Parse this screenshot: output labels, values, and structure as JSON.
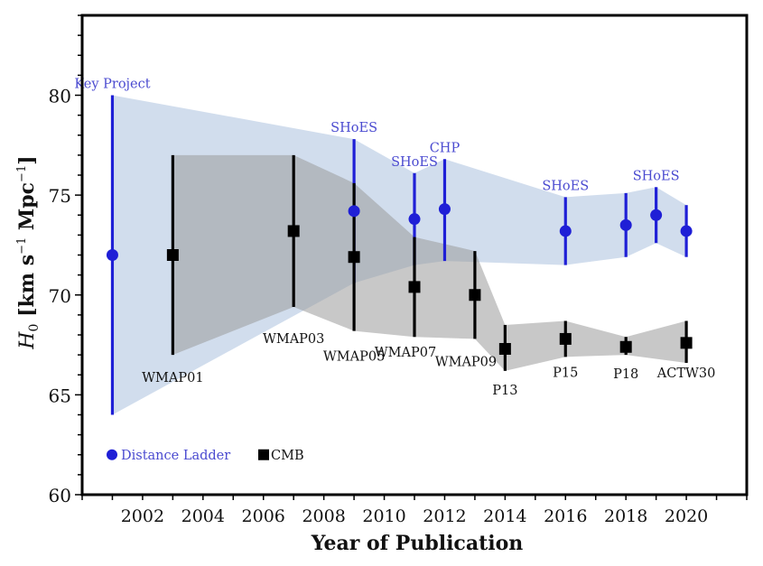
{
  "chart_data": {
    "type": "scatter",
    "title": "",
    "xlabel": "Year of Publication",
    "ylabel": "H0 [km s^-1 Mpc^-1]",
    "ylabel_parts": {
      "symbol": "H",
      "sub": "0",
      "unit_pre": " [km s",
      "exp1": "−1",
      "unit_mid": " Mpc",
      "exp2": "−1",
      "unit_post": "]"
    },
    "xlim": [
      2000,
      2022
    ],
    "ylim": [
      60,
      84
    ],
    "xticks": [
      2002,
      2004,
      2006,
      2008,
      2010,
      2012,
      2014,
      2016,
      2018,
      2020
    ],
    "xtick_labels": [
      "2002",
      "2004",
      "2006",
      "2008",
      "2010",
      "2012",
      "2014",
      "2016",
      "2018",
      "2020"
    ],
    "yticks": [
      60,
      65,
      70,
      75,
      80
    ],
    "ytick_labels": [
      "60",
      "65",
      "70",
      "75",
      "80"
    ],
    "grid": false,
    "legend_position": "bottom-left",
    "series": [
      {
        "name": "Distance Ladder",
        "marker": "circle",
        "color": "#1f1fd6",
        "band_color": "#c9d7ea",
        "points": [
          {
            "x": 2001,
            "y": 72.0,
            "lo": 64.0,
            "hi": 80.0,
            "label": "Key Project"
          },
          {
            "x": 2009,
            "y": 74.2,
            "lo": 70.6,
            "hi": 77.8,
            "label": "SHoES"
          },
          {
            "x": 2011,
            "y": 73.8,
            "lo": 71.5,
            "hi": 76.1,
            "label": "SHoES"
          },
          {
            "x": 2012,
            "y": 74.3,
            "lo": 71.7,
            "hi": 76.8,
            "label": "CHP"
          },
          {
            "x": 2016,
            "y": 73.2,
            "lo": 71.5,
            "hi": 74.9,
            "label": "SHoES"
          },
          {
            "x": 2018,
            "y": 73.5,
            "lo": 71.9,
            "hi": 75.1,
            "label": ""
          },
          {
            "x": 2019,
            "y": 74.0,
            "lo": 72.6,
            "hi": 75.4,
            "label": "SHoES"
          },
          {
            "x": 2020,
            "y": 73.2,
            "lo": 71.9,
            "hi": 74.5,
            "label": ""
          }
        ]
      },
      {
        "name": "CMB",
        "marker": "square",
        "color": "#000000",
        "band_color": "#9a9a9a",
        "points": [
          {
            "x": 2003,
            "y": 72.0,
            "lo": 67.0,
            "hi": 77.0,
            "label": "WMAP01"
          },
          {
            "x": 2007,
            "y": 73.2,
            "lo": 69.4,
            "hi": 77.0,
            "label": "WMAP03"
          },
          {
            "x": 2009,
            "y": 71.9,
            "lo": 68.2,
            "hi": 75.6,
            "label": "WMAP05"
          },
          {
            "x": 2011,
            "y": 70.4,
            "lo": 67.9,
            "hi": 72.9,
            "label": "WMAP07"
          },
          {
            "x": 2013,
            "y": 70.0,
            "lo": 67.8,
            "hi": 72.2,
            "label": "WMAP09"
          },
          {
            "x": 2014,
            "y": 67.3,
            "lo": 66.2,
            "hi": 68.5,
            "label": "P13"
          },
          {
            "x": 2016,
            "y": 67.8,
            "lo": 66.9,
            "hi": 68.7,
            "label": "P15"
          },
          {
            "x": 2018,
            "y": 67.4,
            "lo": 67.0,
            "hi": 67.9,
            "label": "P18"
          },
          {
            "x": 2020,
            "y": 67.6,
            "lo": 66.6,
            "hi": 68.7,
            "label": "ACTW30"
          }
        ]
      }
    ],
    "legend": [
      {
        "label": "Distance Ladder",
        "marker": "circle",
        "color": "#1f1fd6",
        "text_color": "#4a4ad0"
      },
      {
        "label": "CMB",
        "marker": "square",
        "color": "#000000",
        "text_color": "#111111"
      }
    ]
  }
}
